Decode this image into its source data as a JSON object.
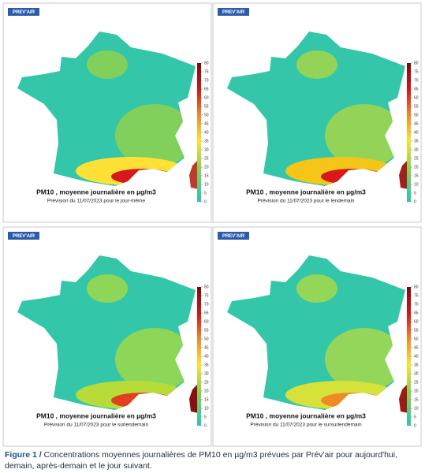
{
  "panels": [
    {
      "logo": "PREV'AIR",
      "title": "PM10 , moyenne journalière en µg/m3",
      "subtitle": "Prévision du 11/07/2023 pour le jour-même"
    },
    {
      "logo": "PREV'AIR",
      "title": "PM10 , moyenne journalière en µg/m3",
      "subtitle": "Prévision du 11/07/2023 pour le lendemain"
    },
    {
      "logo": "PREV'AIR",
      "title": "PM10 , moyenne journalière en µg/m3",
      "subtitle": "Prévision du 11/07/2023 pour le surlendemain"
    },
    {
      "logo": "PREV'AIR",
      "title": "PM10 , moyenne journalière en µg/m3",
      "subtitle": "Prévision du 11/07/2023 pour le sursurlendemain"
    }
  ],
  "colorbar": {
    "ticks": [
      0,
      5,
      10,
      15,
      20,
      25,
      30,
      35,
      40,
      45,
      50,
      55,
      60,
      65,
      70,
      75,
      80
    ]
  },
  "caption": {
    "label": "Figure 1 /",
    "text": "Concentrations moyennes journalières de PM10 en µg/m3 prévues par Prév'air pour aujourd'hui, demain, après-demain et le jour suivant."
  }
}
